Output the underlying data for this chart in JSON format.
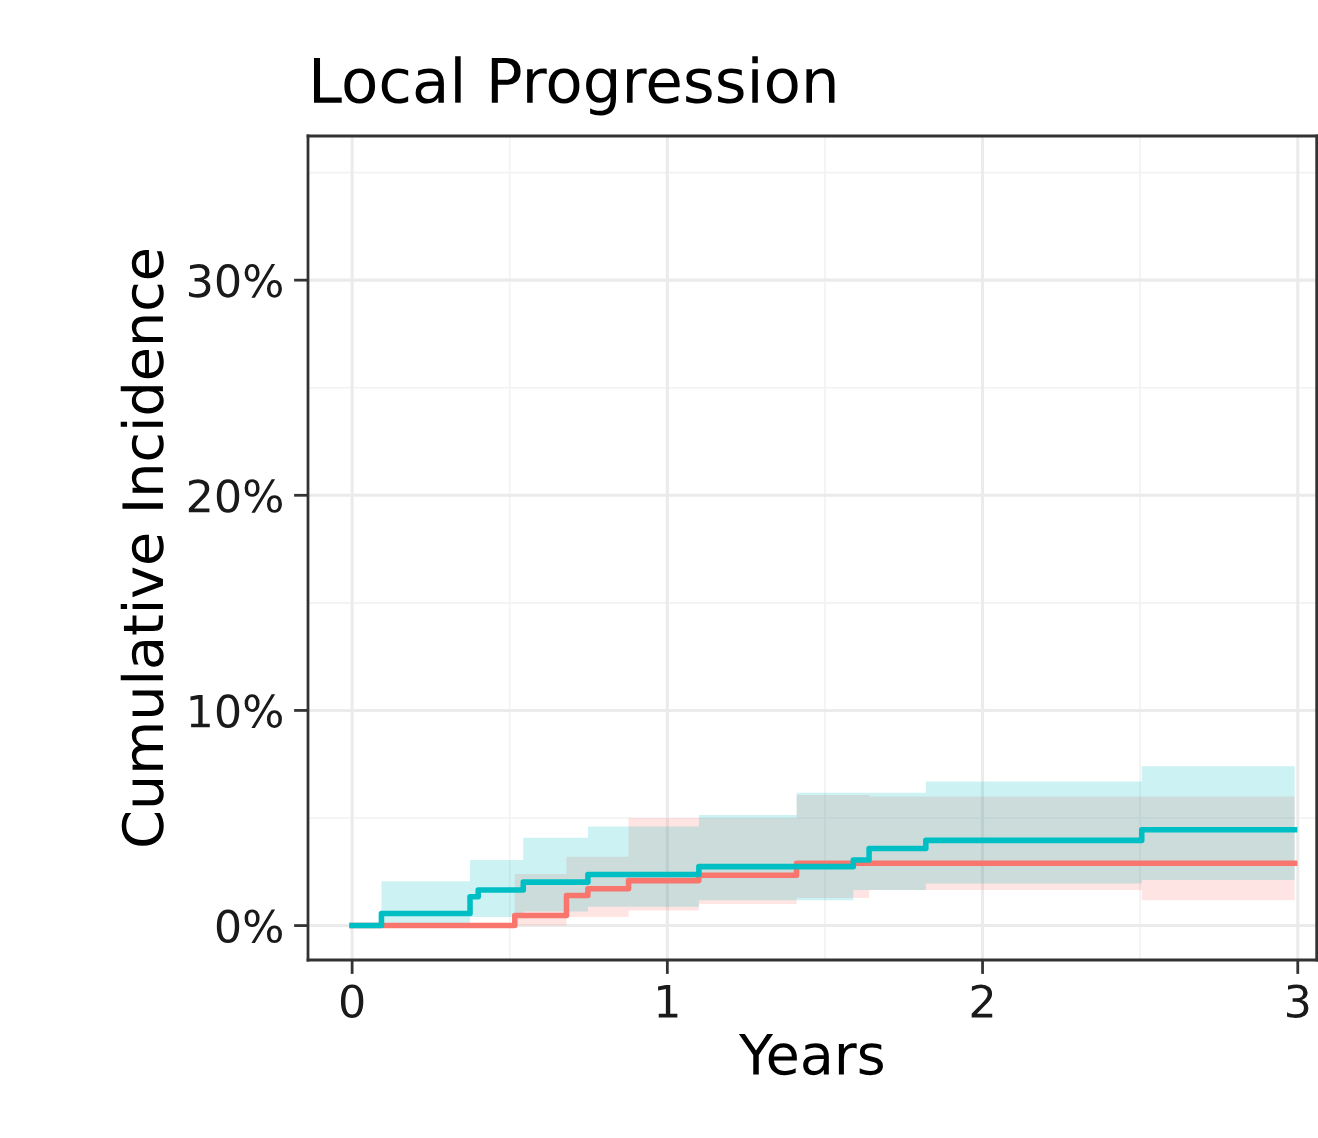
{
  "chart_data": {
    "type": "step",
    "title": "Local Progression",
    "xlabel": "Years",
    "ylabel": "Cumulative Incidence",
    "xlim": [
      -0.14,
      3.06
    ],
    "ylim": [
      -1.6,
      36.7
    ],
    "xticks": [
      0,
      1,
      2,
      3
    ],
    "yticks": [
      {
        "value": 0,
        "label": "0%"
      },
      {
        "value": 10,
        "label": "10%"
      },
      {
        "value": 20,
        "label": "20%"
      },
      {
        "value": 30,
        "label": "30%"
      }
    ],
    "grid": true,
    "legend": false,
    "series": [
      {
        "color": "#f8766d",
        "x": [
          0,
          0.516,
          0.68,
          0.748,
          0.877,
          1.1,
          1.41,
          1.64,
          2.505,
          2.99
        ],
        "values": [
          0,
          0.47,
          1.4,
          1.71,
          2.09,
          2.34,
          2.9,
          2.9,
          2.9,
          2.9
        ],
        "lower": [
          0,
          0,
          0.4,
          0.4,
          0.7,
          1.0,
          1.28,
          1.65,
          1.18,
          1.18
        ],
        "upper": [
          0,
          2.4,
          3.2,
          3.2,
          5.0,
          5.0,
          6.07,
          6.0,
          6.0,
          6.0
        ]
      },
      {
        "color": "#00bfc4",
        "x": [
          0,
          0.093,
          0.374,
          0.4,
          0.543,
          0.748,
          1.1,
          1.41,
          1.59,
          1.64,
          1.82,
          2.505,
          2.99
        ],
        "values": [
          0,
          0.56,
          1.34,
          1.65,
          2.02,
          2.37,
          2.74,
          2.74,
          3.05,
          3.58,
          3.96,
          4.45,
          4.45
        ],
        "lower": [
          0,
          0.1,
          0.4,
          0.4,
          0.65,
          0.87,
          1.18,
          1.18,
          1.65,
          1.65,
          1.96,
          2.12,
          2.12
        ],
        "upper": [
          0,
          2.06,
          3.05,
          3.05,
          4.08,
          4.61,
          5.14,
          6.17,
          6.17,
          6.17,
          6.7,
          7.41,
          7.41
        ]
      }
    ]
  }
}
